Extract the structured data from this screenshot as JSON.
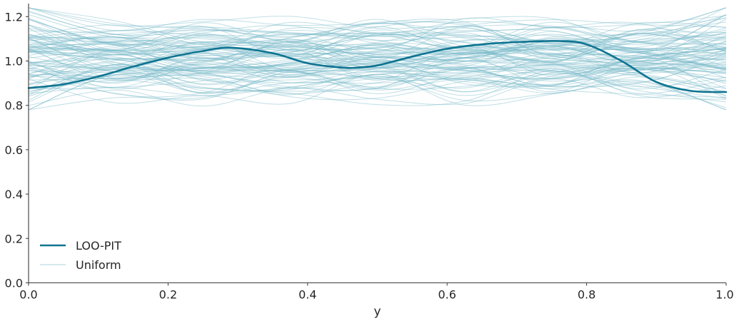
{
  "chart_data": {
    "type": "line",
    "title": "",
    "xlabel": "y",
    "ylabel": "",
    "xlim": [
      0.0,
      1.0
    ],
    "ylim": [
      0.0,
      1.26
    ],
    "grid": false,
    "legend_position": "lower left",
    "x_ticks": [
      "0.0",
      "0.2",
      "0.4",
      "0.6",
      "0.8",
      "1.0"
    ],
    "y_ticks": [
      "0.0",
      "0.2",
      "0.4",
      "0.6",
      "0.8",
      "1.0",
      "1.2"
    ],
    "legend": [
      "LOO-PIT",
      "Uniform"
    ],
    "colors": {
      "loo_pit": "#0f7491",
      "uniform": "#76b7c8",
      "axis": "#3b3b3b",
      "text": "#262626"
    },
    "series": [
      {
        "name": "LOO-PIT",
        "x": [
          0.0,
          0.05,
          0.1,
          0.15,
          0.2,
          0.25,
          0.29,
          0.35,
          0.4,
          0.45,
          0.47,
          0.5,
          0.55,
          0.6,
          0.65,
          0.7,
          0.76,
          0.8,
          0.85,
          0.9,
          0.95,
          1.0
        ],
        "values": [
          0.878,
          0.895,
          0.93,
          0.975,
          1.015,
          1.045,
          1.06,
          1.035,
          0.99,
          0.97,
          0.97,
          0.98,
          1.02,
          1.055,
          1.075,
          1.085,
          1.09,
          1.075,
          1.0,
          0.905,
          0.865,
          0.86
        ]
      },
      {
        "name": "Uniform",
        "description": "~100 uniform reference KDE samples, values ranging roughly 0.78 to 1.24, centered near 1.0",
        "range": [
          0.78,
          1.24
        ]
      }
    ]
  }
}
